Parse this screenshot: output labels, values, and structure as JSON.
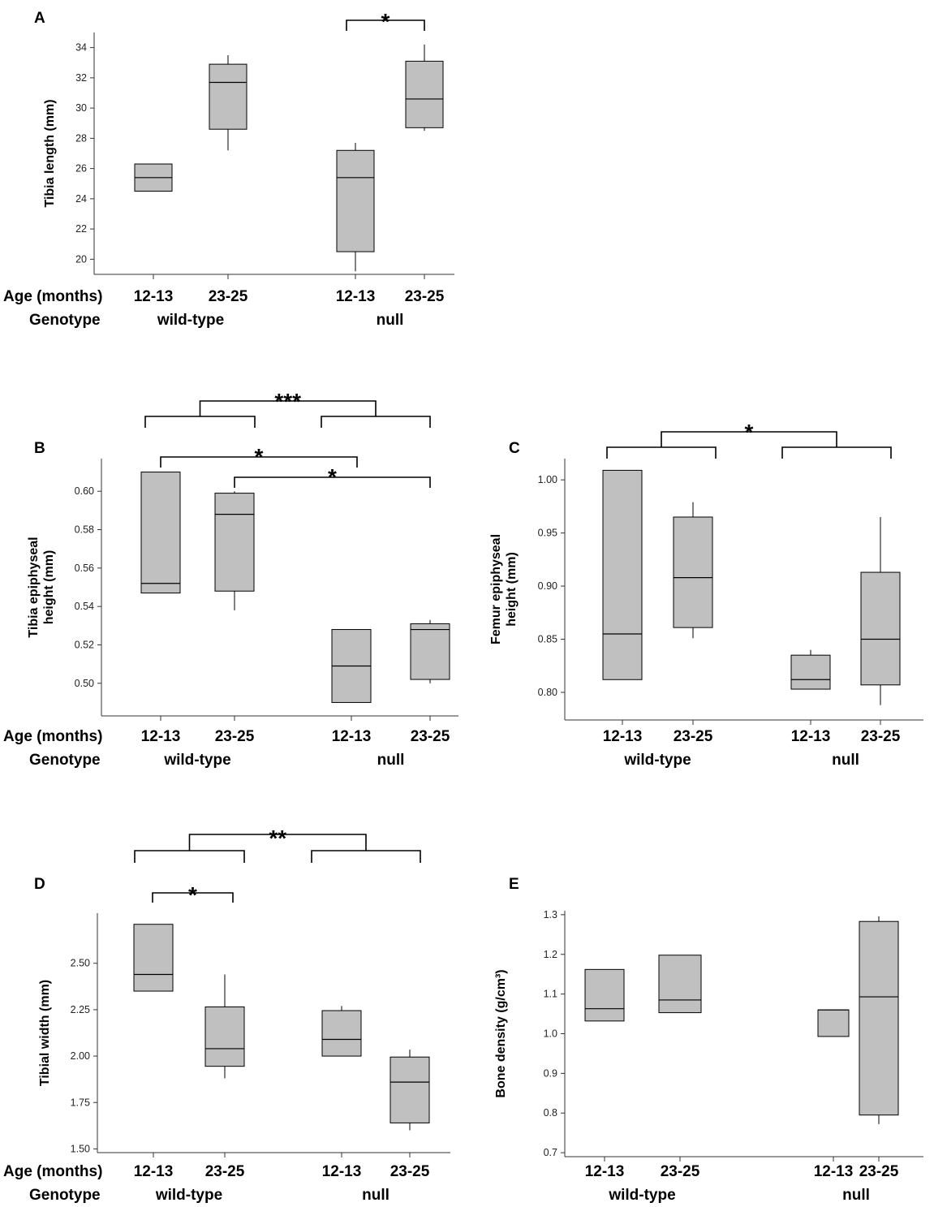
{
  "chart_data": [
    {
      "panel": "A",
      "type": "box",
      "ylabel": "Tibia length (mm)",
      "ylim": [
        19,
        35
      ],
      "yticks": [
        20,
        22,
        24,
        26,
        28,
        30,
        32,
        34
      ],
      "ytick_labels": [
        "20",
        "22",
        "24",
        "26",
        "28",
        "30",
        "32",
        "34"
      ],
      "age_row_label": "Age (months)",
      "genotype_row_label": "Genotype",
      "categories": [
        "12-13",
        "23-25",
        "12-13",
        "23-25"
      ],
      "genotypes": [
        "wild-type",
        "null"
      ],
      "boxes": [
        {
          "age": "12-13",
          "genotype": "wild-type",
          "whisker_low": 24.5,
          "q1": 24.5,
          "median": 25.4,
          "q3": 26.3,
          "whisker_high": 26.3
        },
        {
          "age": "23-25",
          "genotype": "wild-type",
          "whisker_low": 27.2,
          "q1": 28.6,
          "median": 31.7,
          "q3": 32.9,
          "whisker_high": 33.5
        },
        {
          "age": "12-13",
          "genotype": "null",
          "whisker_low": 19.2,
          "q1": 20.5,
          "median": 25.4,
          "q3": 27.2,
          "whisker_high": 27.7
        },
        {
          "age": "23-25",
          "genotype": "null",
          "whisker_low": 28.5,
          "q1": 28.7,
          "median": 30.6,
          "q3": 33.1,
          "whisker_high": 34.2
        }
      ],
      "significance": [
        {
          "label": "*",
          "compare": "null 12-13 vs null 23-25"
        }
      ]
    },
    {
      "panel": "B",
      "type": "box",
      "ylabel": "Tibia epiphyseal height (mm)",
      "ylabel_lines": [
        "Tibia epiphyseal",
        "height (mm)"
      ],
      "ylim": [
        0.483,
        0.617
      ],
      "yticks": [
        0.5,
        0.52,
        0.54,
        0.56,
        0.58,
        0.6
      ],
      "ytick_labels": [
        "0.50",
        "0.52",
        "0.54",
        "0.56",
        "0.58",
        "0.60"
      ],
      "age_row_label": "Age (months)",
      "genotype_row_label": "Genotype",
      "categories": [
        "12-13",
        "23-25",
        "12-13",
        "23-25"
      ],
      "genotypes": [
        "wild-type",
        "null"
      ],
      "boxes": [
        {
          "age": "12-13",
          "genotype": "wild-type",
          "whisker_low": 0.547,
          "q1": 0.547,
          "median": 0.552,
          "q3": 0.61,
          "whisker_high": 0.61
        },
        {
          "age": "23-25",
          "genotype": "wild-type",
          "whisker_low": 0.538,
          "q1": 0.548,
          "median": 0.588,
          "q3": 0.599,
          "whisker_high": 0.6
        },
        {
          "age": "12-13",
          "genotype": "null",
          "whisker_low": 0.49,
          "q1": 0.49,
          "median": 0.509,
          "q3": 0.528,
          "whisker_high": 0.528
        },
        {
          "age": "23-25",
          "genotype": "null",
          "whisker_low": 0.5,
          "q1": 0.502,
          "median": 0.528,
          "q3": 0.531,
          "whisker_high": 0.533
        }
      ],
      "significance": [
        {
          "label": "***",
          "compare": "wild-type vs null"
        },
        {
          "label": "*",
          "compare": "wild-type 12-13 vs null 12-13"
        },
        {
          "label": "*",
          "compare": "wild-type 23-25 vs null 23-25"
        }
      ]
    },
    {
      "panel": "C",
      "type": "box",
      "ylabel": "Femur epiphyseal height (mm)",
      "ylabel_lines": [
        "Femur epiphyseal",
        "height (mm)"
      ],
      "ylim": [
        0.774,
        1.02
      ],
      "yticks": [
        0.8,
        0.85,
        0.9,
        0.95,
        1.0
      ],
      "ytick_labels": [
        "0.80",
        "0.85",
        "0.90",
        "0.95",
        "1.00"
      ],
      "categories": [
        "12-13",
        "23-25",
        "12-13",
        "23-25"
      ],
      "genotypes": [
        "wild-type",
        "null"
      ],
      "boxes": [
        {
          "age": "12-13",
          "genotype": "wild-type",
          "whisker_low": 0.812,
          "q1": 0.812,
          "median": 0.855,
          "q3": 1.009,
          "whisker_high": 1.009
        },
        {
          "age": "23-25",
          "genotype": "wild-type",
          "whisker_low": 0.851,
          "q1": 0.861,
          "median": 0.908,
          "q3": 0.965,
          "whisker_high": 0.979
        },
        {
          "age": "12-13",
          "genotype": "null",
          "whisker_low": 0.803,
          "q1": 0.803,
          "median": 0.812,
          "q3": 0.835,
          "whisker_high": 0.84
        },
        {
          "age": "23-25",
          "genotype": "null",
          "whisker_low": 0.788,
          "q1": 0.807,
          "median": 0.85,
          "q3": 0.913,
          "whisker_high": 0.965
        }
      ],
      "significance": [
        {
          "label": "*",
          "compare": "wild-type vs null"
        }
      ]
    },
    {
      "panel": "D",
      "type": "box",
      "ylabel": "Tibial width (mm)",
      "ylim": [
        1.48,
        2.77
      ],
      "yticks": [
        1.5,
        1.75,
        2.0,
        2.25,
        2.5
      ],
      "ytick_labels": [
        "1.50",
        "1.75",
        "2.00",
        "2.25",
        "2.50"
      ],
      "age_row_label": "Age (months)",
      "genotype_row_label": "Genotype",
      "categories": [
        "12-13",
        "23-25",
        "12-13",
        "23-25"
      ],
      "genotypes": [
        "wild-type",
        "null"
      ],
      "boxes": [
        {
          "age": "12-13",
          "genotype": "wild-type",
          "whisker_low": 2.35,
          "q1": 2.35,
          "median": 2.44,
          "q3": 2.71,
          "whisker_high": 2.71
        },
        {
          "age": "23-25",
          "genotype": "wild-type",
          "whisker_low": 1.88,
          "q1": 1.945,
          "median": 2.04,
          "q3": 2.265,
          "whisker_high": 2.44
        },
        {
          "age": "12-13",
          "genotype": "null",
          "whisker_low": 2.0,
          "q1": 2.0,
          "median": 2.09,
          "q3": 2.245,
          "whisker_high": 2.27
        },
        {
          "age": "23-25",
          "genotype": "null",
          "whisker_low": 1.6,
          "q1": 1.64,
          "median": 1.86,
          "q3": 1.995,
          "whisker_high": 2.035
        }
      ],
      "significance": [
        {
          "label": "**",
          "compare": "wild-type vs null"
        },
        {
          "label": "*",
          "compare": "wild-type 12-13 vs wild-type 23-25"
        }
      ]
    },
    {
      "panel": "E",
      "type": "box",
      "ylabel": "Bone density (g/cm³)",
      "ylim": [
        0.69,
        1.31
      ],
      "yticks": [
        0.7,
        0.8,
        0.9,
        1.0,
        1.1,
        1.2,
        1.3
      ],
      "ytick_labels": [
        "0.7",
        "0.8",
        "0.9",
        "1.0",
        "1.1",
        "1.2",
        "1.3"
      ],
      "categories": [
        "12-13",
        "23-25",
        "12-13",
        "23-25"
      ],
      "genotypes": [
        "wild-type",
        "null"
      ],
      "boxes": [
        {
          "age": "12-13",
          "genotype": "wild-type",
          "whisker_low": 1.032,
          "q1": 1.032,
          "median": 1.063,
          "q3": 1.162,
          "whisker_high": 1.162
        },
        {
          "age": "23-25",
          "genotype": "wild-type",
          "whisker_low": 1.053,
          "q1": 1.053,
          "median": 1.085,
          "q3": 1.198,
          "whisker_high": 1.198
        },
        {
          "age": "12-13",
          "genotype": "null",
          "whisker_low": 0.993,
          "q1": 0.993,
          "median": 1.06,
          "q3": 1.06,
          "whisker_high": 1.06
        },
        {
          "age": "23-25",
          "genotype": "null",
          "whisker_low": 0.772,
          "q1": 0.795,
          "median": 1.093,
          "q3": 1.283,
          "whisker_high": 1.296
        }
      ],
      "significance": []
    }
  ],
  "colors": {
    "box_fill": "#c0c0c0",
    "stroke": "#000000",
    "axis": "#333333"
  }
}
